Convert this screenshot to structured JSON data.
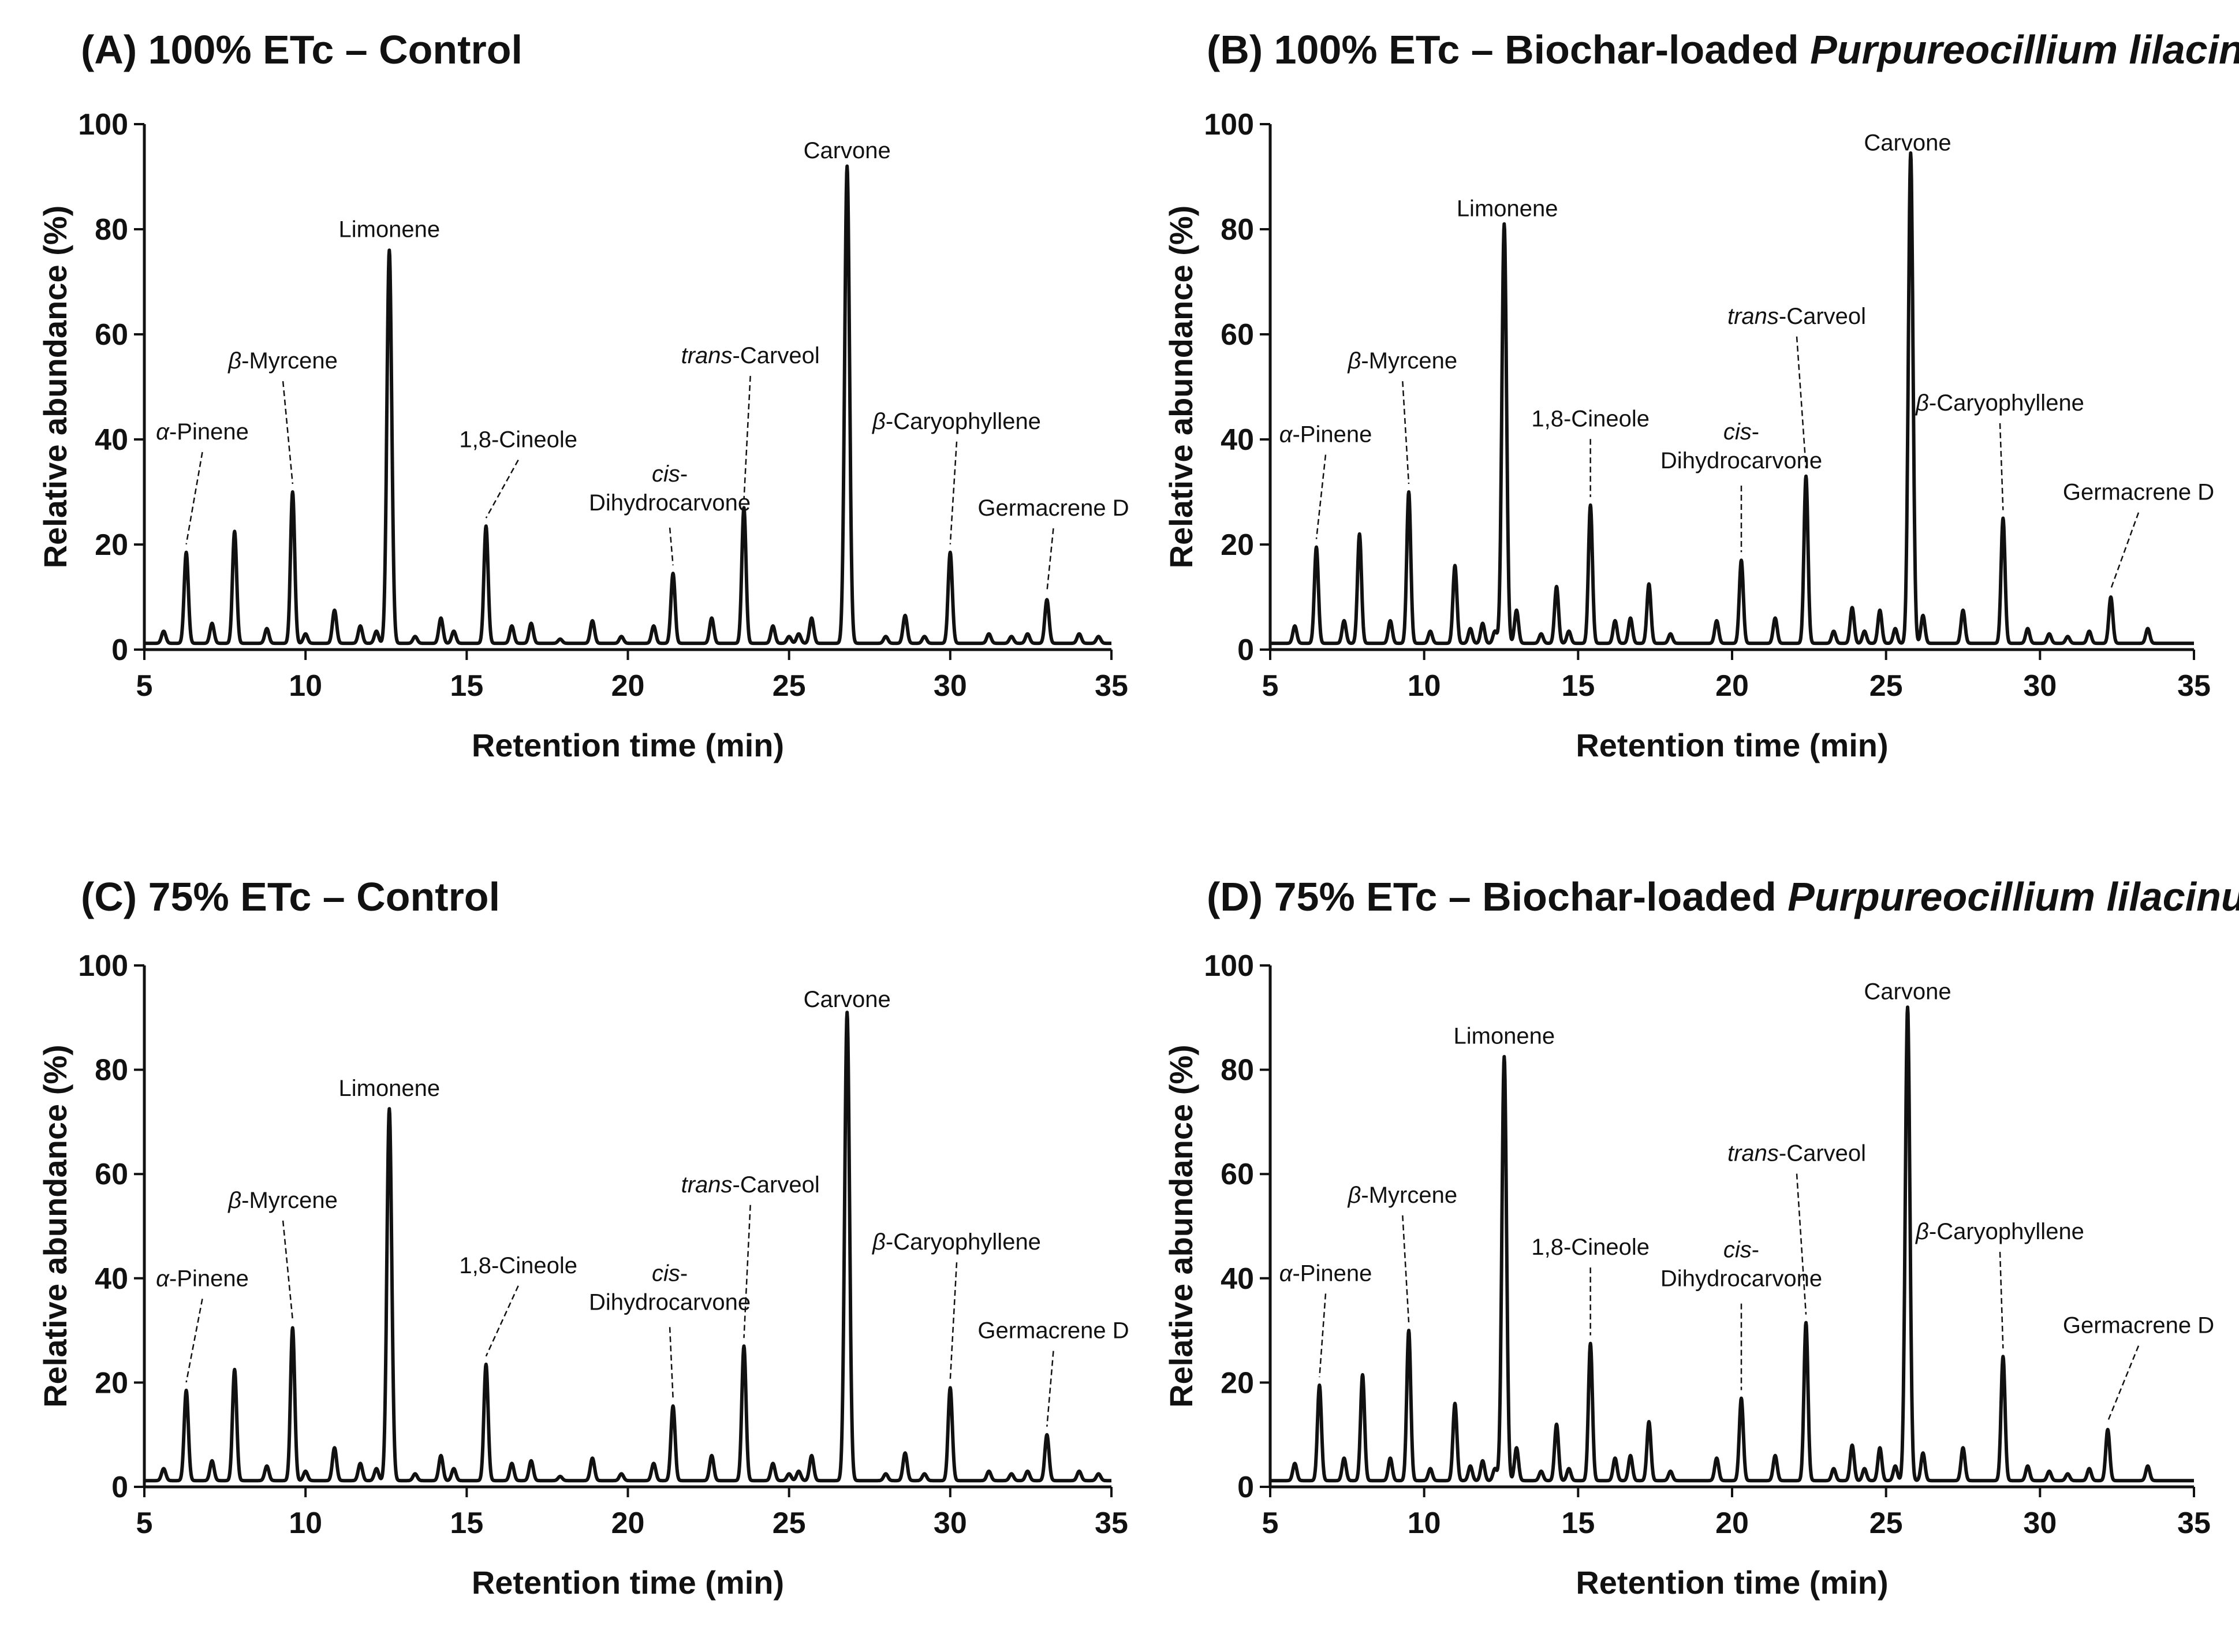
{
  "chart_data": [
    {
      "type": "line",
      "title_plain": "(A) 100% ETc – Control",
      "title_italic": "",
      "xlabel": "Retention time (min)",
      "ylabel": "Relative abundance (%)",
      "xlim": [
        5,
        35
      ],
      "ylim": [
        0,
        100
      ],
      "xticks": [
        5,
        10,
        15,
        20,
        25,
        30,
        35
      ],
      "yticks": [
        0,
        20,
        40,
        60,
        80,
        100
      ],
      "grid": false,
      "peaks": [
        {
          "name_italic": "α",
          "name_plain": "-Pinene",
          "line2": "",
          "x": 6.3,
          "y": 18.5
        },
        {
          "name_italic": "β",
          "name_plain": "-Myrcene",
          "line2": "",
          "x": 9.6,
          "y": 30
        },
        {
          "name_italic": "",
          "name_plain": "Limonene",
          "line2": "",
          "x": 12.6,
          "y": 76
        },
        {
          "name_italic": "",
          "name_plain": "1,8-Cineole",
          "line2": "",
          "x": 15.6,
          "y": 23.5
        },
        {
          "name_italic": "cis",
          "name_plain": "-",
          "line2": "Dihydrocarvone",
          "x": 21.4,
          "y": 14.5
        },
        {
          "name_italic": "trans",
          "name_plain": "-Carveol",
          "line2": "",
          "x": 23.6,
          "y": 27
        },
        {
          "name_italic": "",
          "name_plain": "Carvone",
          "line2": "",
          "x": 26.8,
          "y": 92
        },
        {
          "name_italic": "β",
          "name_plain": "-Caryophyllene",
          "line2": "",
          "x": 30.0,
          "y": 18.5
        },
        {
          "name_italic": "",
          "name_plain": "Germacrene D",
          "line2": "",
          "x": 33.0,
          "y": 9.5
        }
      ],
      "minor_peaks": [
        [
          5.6,
          3.5
        ],
        [
          7.1,
          5
        ],
        [
          7.8,
          22.5
        ],
        [
          8.8,
          4
        ],
        [
          10.0,
          3
        ],
        [
          10.9,
          7.5
        ],
        [
          11.7,
          4.5
        ],
        [
          12.2,
          3.5
        ],
        [
          13.4,
          2.5
        ],
        [
          14.2,
          6
        ],
        [
          14.6,
          3.5
        ],
        [
          16.4,
          4.5
        ],
        [
          17.0,
          5
        ],
        [
          17.9,
          2
        ],
        [
          18.9,
          5.5
        ],
        [
          19.8,
          2.5
        ],
        [
          20.8,
          4.5
        ],
        [
          22.6,
          6
        ],
        [
          24.5,
          4.5
        ],
        [
          25.0,
          2.5
        ],
        [
          25.3,
          3
        ],
        [
          25.7,
          6
        ],
        [
          28.0,
          2.5
        ],
        [
          28.6,
          6.5
        ],
        [
          29.2,
          2.5
        ],
        [
          31.2,
          3
        ],
        [
          31.9,
          2.5
        ],
        [
          32.4,
          3
        ],
        [
          34.0,
          3
        ],
        [
          34.6,
          2.5
        ]
      ],
      "label_pos": [
        [
          6.8,
          40
        ],
        [
          9.3,
          53.5
        ],
        [
          12.6,
          78.5
        ],
        [
          16.6,
          38.5
        ],
        [
          21.3,
          32
        ],
        [
          23.8,
          54.5
        ],
        [
          26.8,
          93.5
        ],
        [
          30.2,
          42
        ],
        [
          33.2,
          25.5
        ]
      ]
    },
    {
      "type": "line",
      "title_plain": "(B) 100% ETc – Biochar-loaded ",
      "title_italic": "Purpureocillium lilacinum",
      "xlabel": "Retention time (min)",
      "ylabel": "Relative abundance (%)",
      "xlim": [
        5,
        35
      ],
      "ylim": [
        0,
        100
      ],
      "xticks": [
        5,
        10,
        15,
        20,
        25,
        30,
        35
      ],
      "yticks": [
        0,
        20,
        40,
        60,
        80,
        100
      ],
      "grid": false,
      "peaks": [
        {
          "name_italic": "α",
          "name_plain": "-Pinene",
          "line2": "",
          "x": 6.5,
          "y": 19.5
        },
        {
          "name_italic": "β",
          "name_plain": "-Myrcene",
          "line2": "",
          "x": 9.5,
          "y": 30
        },
        {
          "name_italic": "",
          "name_plain": "Limonene",
          "line2": "",
          "x": 12.6,
          "y": 81
        },
        {
          "name_italic": "",
          "name_plain": "1,8-Cineole",
          "line2": "",
          "x": 15.4,
          "y": 27.5
        },
        {
          "name_italic": "cis",
          "name_plain": "-",
          "line2": "Dihydrocarvone",
          "x": 20.3,
          "y": 17
        },
        {
          "name_italic": "trans",
          "name_plain": "-Carveol",
          "line2": "",
          "x": 22.4,
          "y": 33
        },
        {
          "name_italic": "",
          "name_plain": "Carvone",
          "line2": "",
          "x": 25.8,
          "y": 94.5
        },
        {
          "name_italic": "β",
          "name_plain": "-Caryophyllene",
          "line2": "",
          "x": 28.8,
          "y": 25
        },
        {
          "name_italic": "",
          "name_plain": "Germacrene D",
          "line2": "",
          "x": 32.3,
          "y": 10
        }
      ],
      "minor_peaks": [
        [
          5.8,
          4.5
        ],
        [
          7.4,
          5.5
        ],
        [
          7.9,
          22
        ],
        [
          8.9,
          5.5
        ],
        [
          10.2,
          3.5
        ],
        [
          11.0,
          16
        ],
        [
          11.5,
          4
        ],
        [
          11.9,
          5
        ],
        [
          12.3,
          3.5
        ],
        [
          13.0,
          7.5
        ],
        [
          13.8,
          3
        ],
        [
          14.3,
          12
        ],
        [
          14.7,
          3.5
        ],
        [
          16.2,
          5.5
        ],
        [
          16.7,
          6
        ],
        [
          17.3,
          12.5
        ],
        [
          18.0,
          3
        ],
        [
          19.5,
          5.5
        ],
        [
          21.4,
          6
        ],
        [
          23.3,
          3.5
        ],
        [
          23.9,
          8
        ],
        [
          24.3,
          3.5
        ],
        [
          24.8,
          7.5
        ],
        [
          25.3,
          4
        ],
        [
          26.2,
          6.5
        ],
        [
          27.5,
          7.5
        ],
        [
          29.6,
          4
        ],
        [
          30.3,
          3
        ],
        [
          30.9,
          2.5
        ],
        [
          31.6,
          3.5
        ],
        [
          33.5,
          4
        ]
      ],
      "label_pos": [
        [
          6.8,
          39.5
        ],
        [
          9.3,
          53.5
        ],
        [
          12.7,
          82.5
        ],
        [
          15.4,
          42.5
        ],
        [
          20.3,
          40
        ],
        [
          22.1,
          62
        ],
        [
          25.7,
          95
        ],
        [
          28.7,
          45.5
        ],
        [
          33.2,
          28.5
        ]
      ]
    },
    {
      "type": "line",
      "title_plain": "(C) 75% ETc – Control",
      "title_italic": "",
      "xlabel": "Retention time (min)",
      "ylabel": "Relative abundance (%)",
      "xlim": [
        5,
        35
      ],
      "ylim": [
        0,
        100
      ],
      "xticks": [
        5,
        10,
        15,
        20,
        25,
        30,
        35
      ],
      "yticks": [
        0,
        20,
        40,
        60,
        80,
        100
      ],
      "grid": false,
      "peaks": [
        {
          "name_italic": "α",
          "name_plain": "-Pinene",
          "line2": "",
          "x": 6.3,
          "y": 18.5
        },
        {
          "name_italic": "β",
          "name_plain": "-Myrcene",
          "line2": "",
          "x": 9.6,
          "y": 30.5
        },
        {
          "name_italic": "",
          "name_plain": "Limonene",
          "line2": "",
          "x": 12.6,
          "y": 72.5
        },
        {
          "name_italic": "",
          "name_plain": "1,8-Cineole",
          "line2": "",
          "x": 15.6,
          "y": 23.5
        },
        {
          "name_italic": "cis",
          "name_plain": "-",
          "line2": "Dihydrocarvone",
          "x": 21.4,
          "y": 15.5
        },
        {
          "name_italic": "trans",
          "name_plain": "-Carveol",
          "line2": "",
          "x": 23.6,
          "y": 27
        },
        {
          "name_italic": "",
          "name_plain": "Carvone",
          "line2": "",
          "x": 26.8,
          "y": 91
        },
        {
          "name_italic": "β",
          "name_plain": "-Caryophyllene",
          "line2": "",
          "x": 30.0,
          "y": 19
        },
        {
          "name_italic": "",
          "name_plain": "Germacrene D",
          "line2": "",
          "x": 33.0,
          "y": 10
        }
      ],
      "minor_peaks": [
        [
          5.6,
          3.5
        ],
        [
          7.1,
          5
        ],
        [
          7.8,
          22.5
        ],
        [
          8.8,
          4
        ],
        [
          10.0,
          3
        ],
        [
          10.9,
          7.5
        ],
        [
          11.7,
          4.5
        ],
        [
          12.2,
          3.5
        ],
        [
          13.4,
          2.5
        ],
        [
          14.2,
          6
        ],
        [
          14.6,
          3.5
        ],
        [
          16.4,
          4.5
        ],
        [
          17.0,
          5
        ],
        [
          17.9,
          2
        ],
        [
          18.9,
          5.5
        ],
        [
          19.8,
          2.5
        ],
        [
          20.8,
          4.5
        ],
        [
          22.6,
          6
        ],
        [
          24.5,
          4.5
        ],
        [
          25.0,
          2.5
        ],
        [
          25.3,
          3
        ],
        [
          25.7,
          6
        ],
        [
          28.0,
          2.5
        ],
        [
          28.6,
          6.5
        ],
        [
          29.2,
          2.5
        ],
        [
          31.2,
          3
        ],
        [
          31.9,
          2.5
        ],
        [
          32.4,
          3
        ],
        [
          34.0,
          3
        ],
        [
          34.6,
          2.5
        ]
      ],
      "label_pos": [
        [
          6.8,
          38.5
        ],
        [
          9.3,
          53.5
        ],
        [
          12.6,
          75
        ],
        [
          16.6,
          41
        ],
        [
          21.3,
          39.5
        ],
        [
          23.8,
          56.5
        ],
        [
          26.8,
          92
        ],
        [
          30.2,
          45.5
        ],
        [
          33.2,
          28.5
        ]
      ]
    },
    {
      "type": "line",
      "title_plain": "(D) 75% ETc – Biochar-loaded ",
      "title_italic": "Purpureocillium lilacinum",
      "xlabel": "Retention time (min)",
      "ylabel": "Relative abundance (%)",
      "xlim": [
        5,
        35
      ],
      "ylim": [
        0,
        100
      ],
      "xticks": [
        5,
        10,
        15,
        20,
        25,
        30,
        35
      ],
      "yticks": [
        0,
        20,
        40,
        60,
        80,
        100
      ],
      "grid": false,
      "peaks": [
        {
          "name_italic": "α",
          "name_plain": "-Pinene",
          "line2": "",
          "x": 6.6,
          "y": 19.5
        },
        {
          "name_italic": "β",
          "name_plain": "-Myrcene",
          "line2": "",
          "x": 9.5,
          "y": 30
        },
        {
          "name_italic": "",
          "name_plain": "Limonene",
          "line2": "",
          "x": 12.6,
          "y": 82.5
        },
        {
          "name_italic": "",
          "name_plain": "1,8-Cineole",
          "line2": "",
          "x": 15.4,
          "y": 27.5
        },
        {
          "name_italic": "cis",
          "name_plain": "-",
          "line2": "Dihydrocarvone",
          "x": 20.3,
          "y": 17
        },
        {
          "name_italic": "trans",
          "name_plain": "-Carveol",
          "line2": "",
          "x": 22.4,
          "y": 31.5
        },
        {
          "name_italic": "",
          "name_plain": "Carvone",
          "line2": "",
          "x": 25.7,
          "y": 92
        },
        {
          "name_italic": "β",
          "name_plain": "-Caryophyllene",
          "line2": "",
          "x": 28.8,
          "y": 25
        },
        {
          "name_italic": "",
          "name_plain": "Germacrene D",
          "line2": "",
          "x": 32.2,
          "y": 11
        }
      ],
      "minor_peaks": [
        [
          5.8,
          4.5
        ],
        [
          7.4,
          5.5
        ],
        [
          8.0,
          21.5
        ],
        [
          8.9,
          5.5
        ],
        [
          10.2,
          3.5
        ],
        [
          11.0,
          16
        ],
        [
          11.5,
          4
        ],
        [
          11.9,
          5
        ],
        [
          12.3,
          3.5
        ],
        [
          13.0,
          7.5
        ],
        [
          13.8,
          3
        ],
        [
          14.3,
          12
        ],
        [
          14.7,
          3.5
        ],
        [
          16.2,
          5.5
        ],
        [
          16.7,
          6
        ],
        [
          17.3,
          12.5
        ],
        [
          18.0,
          3
        ],
        [
          19.5,
          5.5
        ],
        [
          21.4,
          6
        ],
        [
          23.3,
          3.5
        ],
        [
          23.9,
          8
        ],
        [
          24.3,
          3.5
        ],
        [
          24.8,
          7.5
        ],
        [
          25.3,
          4
        ],
        [
          26.2,
          6.5
        ],
        [
          27.5,
          7.5
        ],
        [
          29.6,
          4
        ],
        [
          30.3,
          3
        ],
        [
          30.9,
          2.5
        ],
        [
          31.6,
          3.5
        ],
        [
          33.5,
          4
        ]
      ],
      "label_pos": [
        [
          6.8,
          39.5
        ],
        [
          9.3,
          54.5
        ],
        [
          12.6,
          85
        ],
        [
          15.4,
          44.5
        ],
        [
          20.3,
          44
        ],
        [
          22.1,
          62.5
        ],
        [
          25.7,
          93.5
        ],
        [
          28.7,
          47.5
        ],
        [
          33.2,
          29.5
        ]
      ]
    }
  ]
}
